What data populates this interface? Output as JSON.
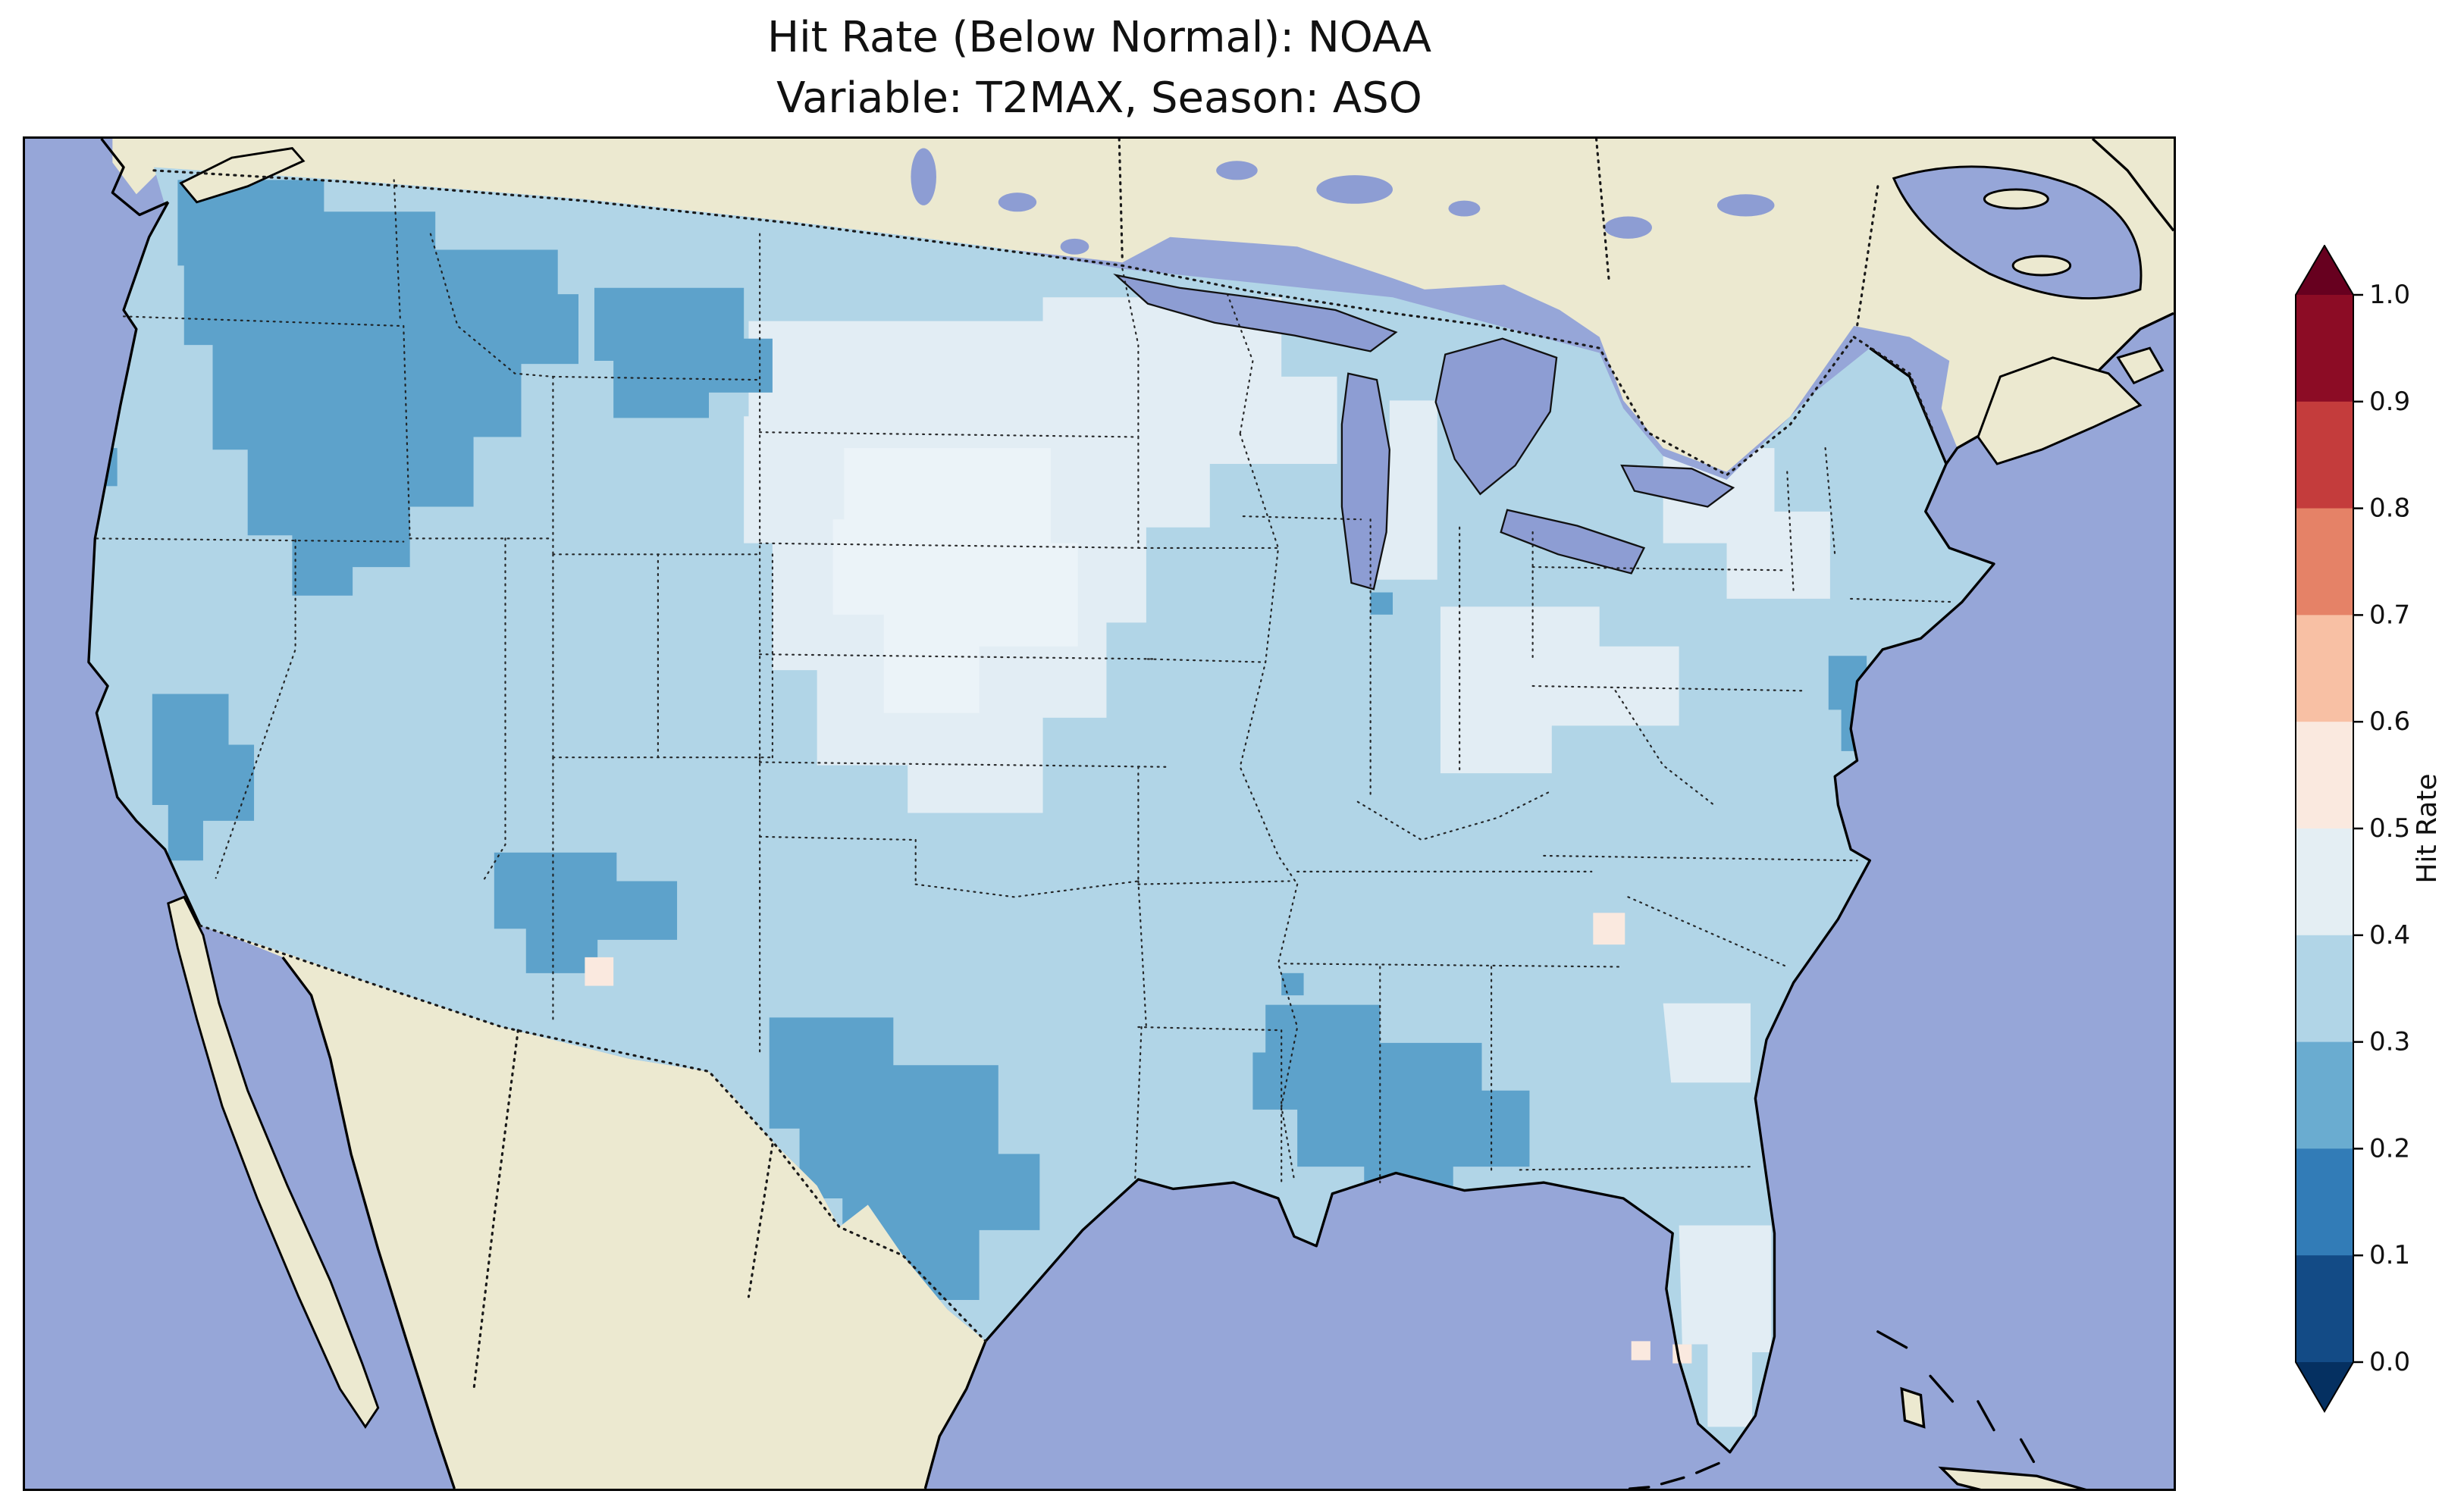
{
  "figure": {
    "title_line1": "Hit Rate (Below Normal): NOAA",
    "title_line2": "Variable: T2MAX, Season: ASO"
  },
  "colorbar": {
    "label": "Hit Rate",
    "ticks_top_to_bottom": [
      "1.0",
      "0.9",
      "0.8",
      "0.7",
      "0.6",
      "0.5",
      "0.4",
      "0.3",
      "0.2",
      "0.1",
      "0.0"
    ],
    "segments_top_to_bottom": [
      "#8c0c25",
      "#c43c3c",
      "#e58267",
      "#f8c0a4",
      "#fae9df",
      "#e4eef3",
      "#b1d5e7",
      "#6aacd0",
      "#327cb7",
      "#134b86"
    ],
    "over_color": "#67001f",
    "under_color": "#053061"
  },
  "palette": {
    "ocean": "#96a6d8",
    "land": "#ece9d0",
    "lake": "#8d9dd3",
    "us_base": "#b1d5e7",
    "us_pale": "#e2edf4",
    "us_pale_core": "#ebf3f8",
    "us_dark": "#5da2cb",
    "us_white": "#fae9df",
    "coast": "#000000",
    "border_dots": "#1a1a1a"
  },
  "chart_data": {
    "type": "heatmap",
    "title": "Hit Rate (Below Normal): NOAA",
    "subtitle": "Variable: T2MAX, Season: ASO",
    "variable": "T2MAX",
    "season": "ASO",
    "source": "NOAA",
    "colorbar_label": "Hit Rate",
    "colorbar_ticks": [
      0.0,
      0.1,
      0.2,
      0.3,
      0.4,
      0.5,
      0.6,
      0.7,
      0.8,
      0.9,
      1.0
    ],
    "colorbar_range": [
      0.0,
      1.0
    ],
    "colormap": "RdBu_r discrete, 0.1 bins, extended arrows both ends",
    "geographic_extent": "Contiguous United States with surrounding Canada, Mexico, Great Lakes, Atlantic and Pacific",
    "legend_position": "right",
    "regions": [
      {
        "name": "Eastern Washington / Oregon / Idaho / northern Nevada / NW Utah",
        "hit_rate_bin": "0.2-0.3"
      },
      {
        "name": "Northwest Wyoming",
        "hit_rate_bin": "0.2-0.3"
      },
      {
        "name": "Southern California coast",
        "hit_rate_bin": "0.2-0.3"
      },
      {
        "name": "Northern Arizona / northwest New Mexico",
        "hit_rate_bin": "0.2-0.3"
      },
      {
        "name": "Central and west Texas",
        "hit_rate_bin": "0.2-0.3"
      },
      {
        "name": "Alabama and western Georgia",
        "hit_rate_bin": "0.2-0.3"
      },
      {
        "name": "New Jersey / Delaware Bay coast",
        "hit_rate_bin": "0.2-0.3"
      },
      {
        "name": "Most of the West, South and East CONUS",
        "hit_rate_bin": "0.3-0.4"
      },
      {
        "name": "Northern Plains (Dakotas, Nebraska, Kansas), upper Midwest, Ohio Valley, Florida peninsula",
        "hit_rate_bin": "0.4-0.5"
      },
      {
        "name": "Scattered cells: central New Mexico, central Georgia, Florida Keys",
        "hit_rate_bin": "0.5-0.6"
      }
    ]
  }
}
